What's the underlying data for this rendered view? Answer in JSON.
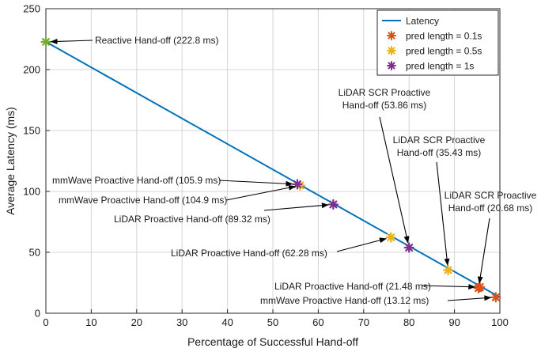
{
  "chart_data": {
    "type": "line",
    "title": "",
    "xlabel": "Percentage of Successful Hand-off",
    "ylabel": "Average Latency (ms)",
    "xlim": [
      0,
      100
    ],
    "ylim": [
      0,
      250
    ],
    "xticks": [
      "0",
      "10",
      "20",
      "30",
      "40",
      "50",
      "60",
      "70",
      "80",
      "90",
      "100"
    ],
    "yticks": [
      "0",
      "50",
      "100",
      "150",
      "200",
      "250"
    ],
    "grid": true,
    "legend_position": "top-right",
    "colors": {
      "latency": "#0072BD",
      "pred_0_1": "#D95319",
      "pred_0_5": "#EDB120",
      "pred_1": "#7E2F8E",
      "reactive": "#77AC30"
    },
    "series": [
      {
        "name": "Latency",
        "style": "line",
        "color_key": "latency",
        "x": [
          0,
          100
        ],
        "y": [
          222.8,
          13.12
        ]
      },
      {
        "name": "pred length = 0.1s",
        "style": "marker",
        "color_key": "pred_0_1",
        "x": [
          99.1,
          95.6,
          95.3
        ],
        "y": [
          13.12,
          21.48,
          20.68
        ]
      },
      {
        "name": "pred length = 0.5s",
        "style": "marker",
        "color_key": "pred_0_5",
        "x": [
          56.0,
          76.0,
          88.6
        ],
        "y": [
          104.9,
          62.28,
          35.43
        ]
      },
      {
        "name": "pred length = 1s",
        "style": "marker",
        "color_key": "pred_1",
        "x": [
          55.4,
          63.3,
          80.0
        ],
        "y": [
          105.9,
          89.32,
          53.86
        ]
      }
    ],
    "extra_points": [
      {
        "x": 0,
        "y": 222.8,
        "color_key": "reactive"
      }
    ],
    "annotations": [
      {
        "lines": [
          "Reactive Hand-off (222.8 ms)"
        ],
        "target": [
          0,
          222.8
        ]
      },
      {
        "lines": [
          "mmWave Proactive Hand-off (105.9 ms)"
        ],
        "target": [
          55.4,
          105.9
        ]
      },
      {
        "lines": [
          "mmWave Proactive Hand-off (104.9 ms)"
        ],
        "target": [
          56.0,
          104.9
        ]
      },
      {
        "lines": [
          "LiDAR Proactive Hand-off (89.32 ms)"
        ],
        "target": [
          63.3,
          89.32
        ]
      },
      {
        "lines": [
          "LiDAR Proactive Hand-off (62.28 ms)"
        ],
        "target": [
          76.0,
          62.28
        ]
      },
      {
        "lines": [
          "LiDAR SCR Proactive",
          "Hand-off (53.86 ms)"
        ],
        "target": [
          80.0,
          53.86
        ]
      },
      {
        "lines": [
          "LiDAR SCR Proactive",
          "Hand-off (35.43 ms)"
        ],
        "target": [
          88.6,
          35.43
        ]
      },
      {
        "lines": [
          "LiDAR SCR Proactive",
          "Hand-off (20.68 ms)"
        ],
        "target": [
          95.3,
          20.68
        ]
      },
      {
        "lines": [
          "LiDAR Proactive Hand-off (21.48 ms)"
        ],
        "target": [
          95.6,
          21.48
        ]
      },
      {
        "lines": [
          "mmWave Proactive Hand-off (13.12 ms)"
        ],
        "target": [
          99.1,
          13.12
        ]
      }
    ]
  }
}
